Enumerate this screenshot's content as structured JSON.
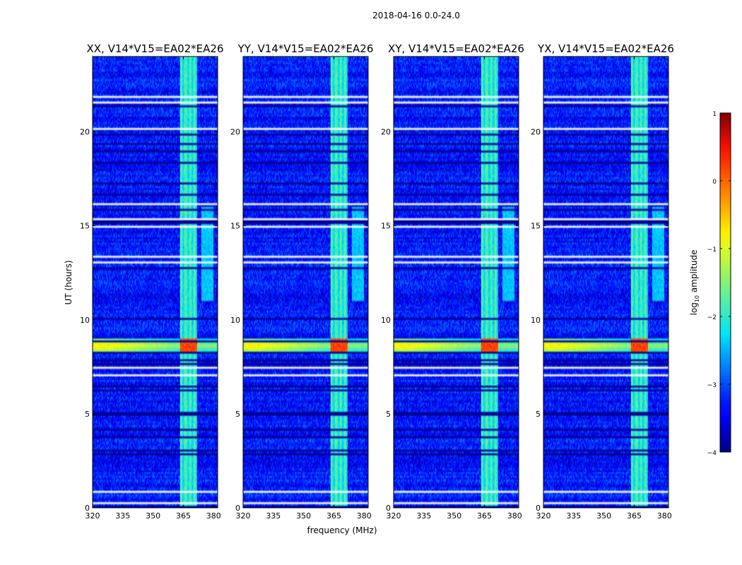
{
  "chart_data": {
    "type": "heatmap",
    "figure_title": "2018-04-16 0.0-24.0",
    "xlabel": "frequency (MHz)",
    "ylabel": "UT (hours)",
    "xlim": [
      320,
      382
    ],
    "ylim": [
      0,
      24
    ],
    "xticks": [
      320,
      335,
      350,
      365,
      380
    ],
    "yticks": [
      0,
      5,
      10,
      15,
      20
    ],
    "colorbar": {
      "label": "log10 amplitude",
      "label_base": "log",
      "label_sub": "10",
      "label_rest": " amplitude",
      "min": -4,
      "max": 1,
      "ticks": [
        1,
        0,
        -1,
        -2,
        -3,
        -4
      ],
      "tick_labels": [
        "1",
        "0",
        "−1",
        "−2",
        "−3",
        "−4"
      ],
      "colormap": "jet",
      "colors": [
        "#00007f",
        "#0000ff",
        "#007fff",
        "#00ffff",
        "#7fff7f",
        "#ffff00",
        "#ff7f00",
        "#ff0000",
        "#7f0000"
      ]
    },
    "features": {
      "background_level": -3.3,
      "rfi_band_MHz": [
        363.5,
        372
      ],
      "rfi_band_level": -1.8,
      "strong_event_hours": [
        8.2,
        9.0
      ],
      "strong_event_level": 0.2,
      "flagged_hours": [
        0.2,
        0.8,
        7.0,
        7.4,
        13.1,
        13.4,
        15.0,
        15.4,
        16.2,
        20.2,
        21.6,
        21.9
      ]
    },
    "panels": [
      {
        "title": "XX, V14*V15=EA02*EA26",
        "ytick_labels": [
          "0",
          "5",
          "10",
          "15",
          "20"
        ]
      },
      {
        "title": "YY, V14*V15=EA02*EA26",
        "ytick_labels": [
          "0",
          "5",
          "10",
          "15",
          "20"
        ]
      },
      {
        "title": "XY, V14*V15=EA02*EA26",
        "ytick_labels": [
          "0",
          "5",
          "10",
          "15",
          "20"
        ]
      },
      {
        "title": "YX, V14*V15=EA02*EA26",
        "ytick_labels": [
          "0",
          "5",
          "10",
          "15",
          "20"
        ]
      }
    ],
    "xtick_labels": [
      "320",
      "335",
      "350",
      "365",
      "380"
    ]
  }
}
